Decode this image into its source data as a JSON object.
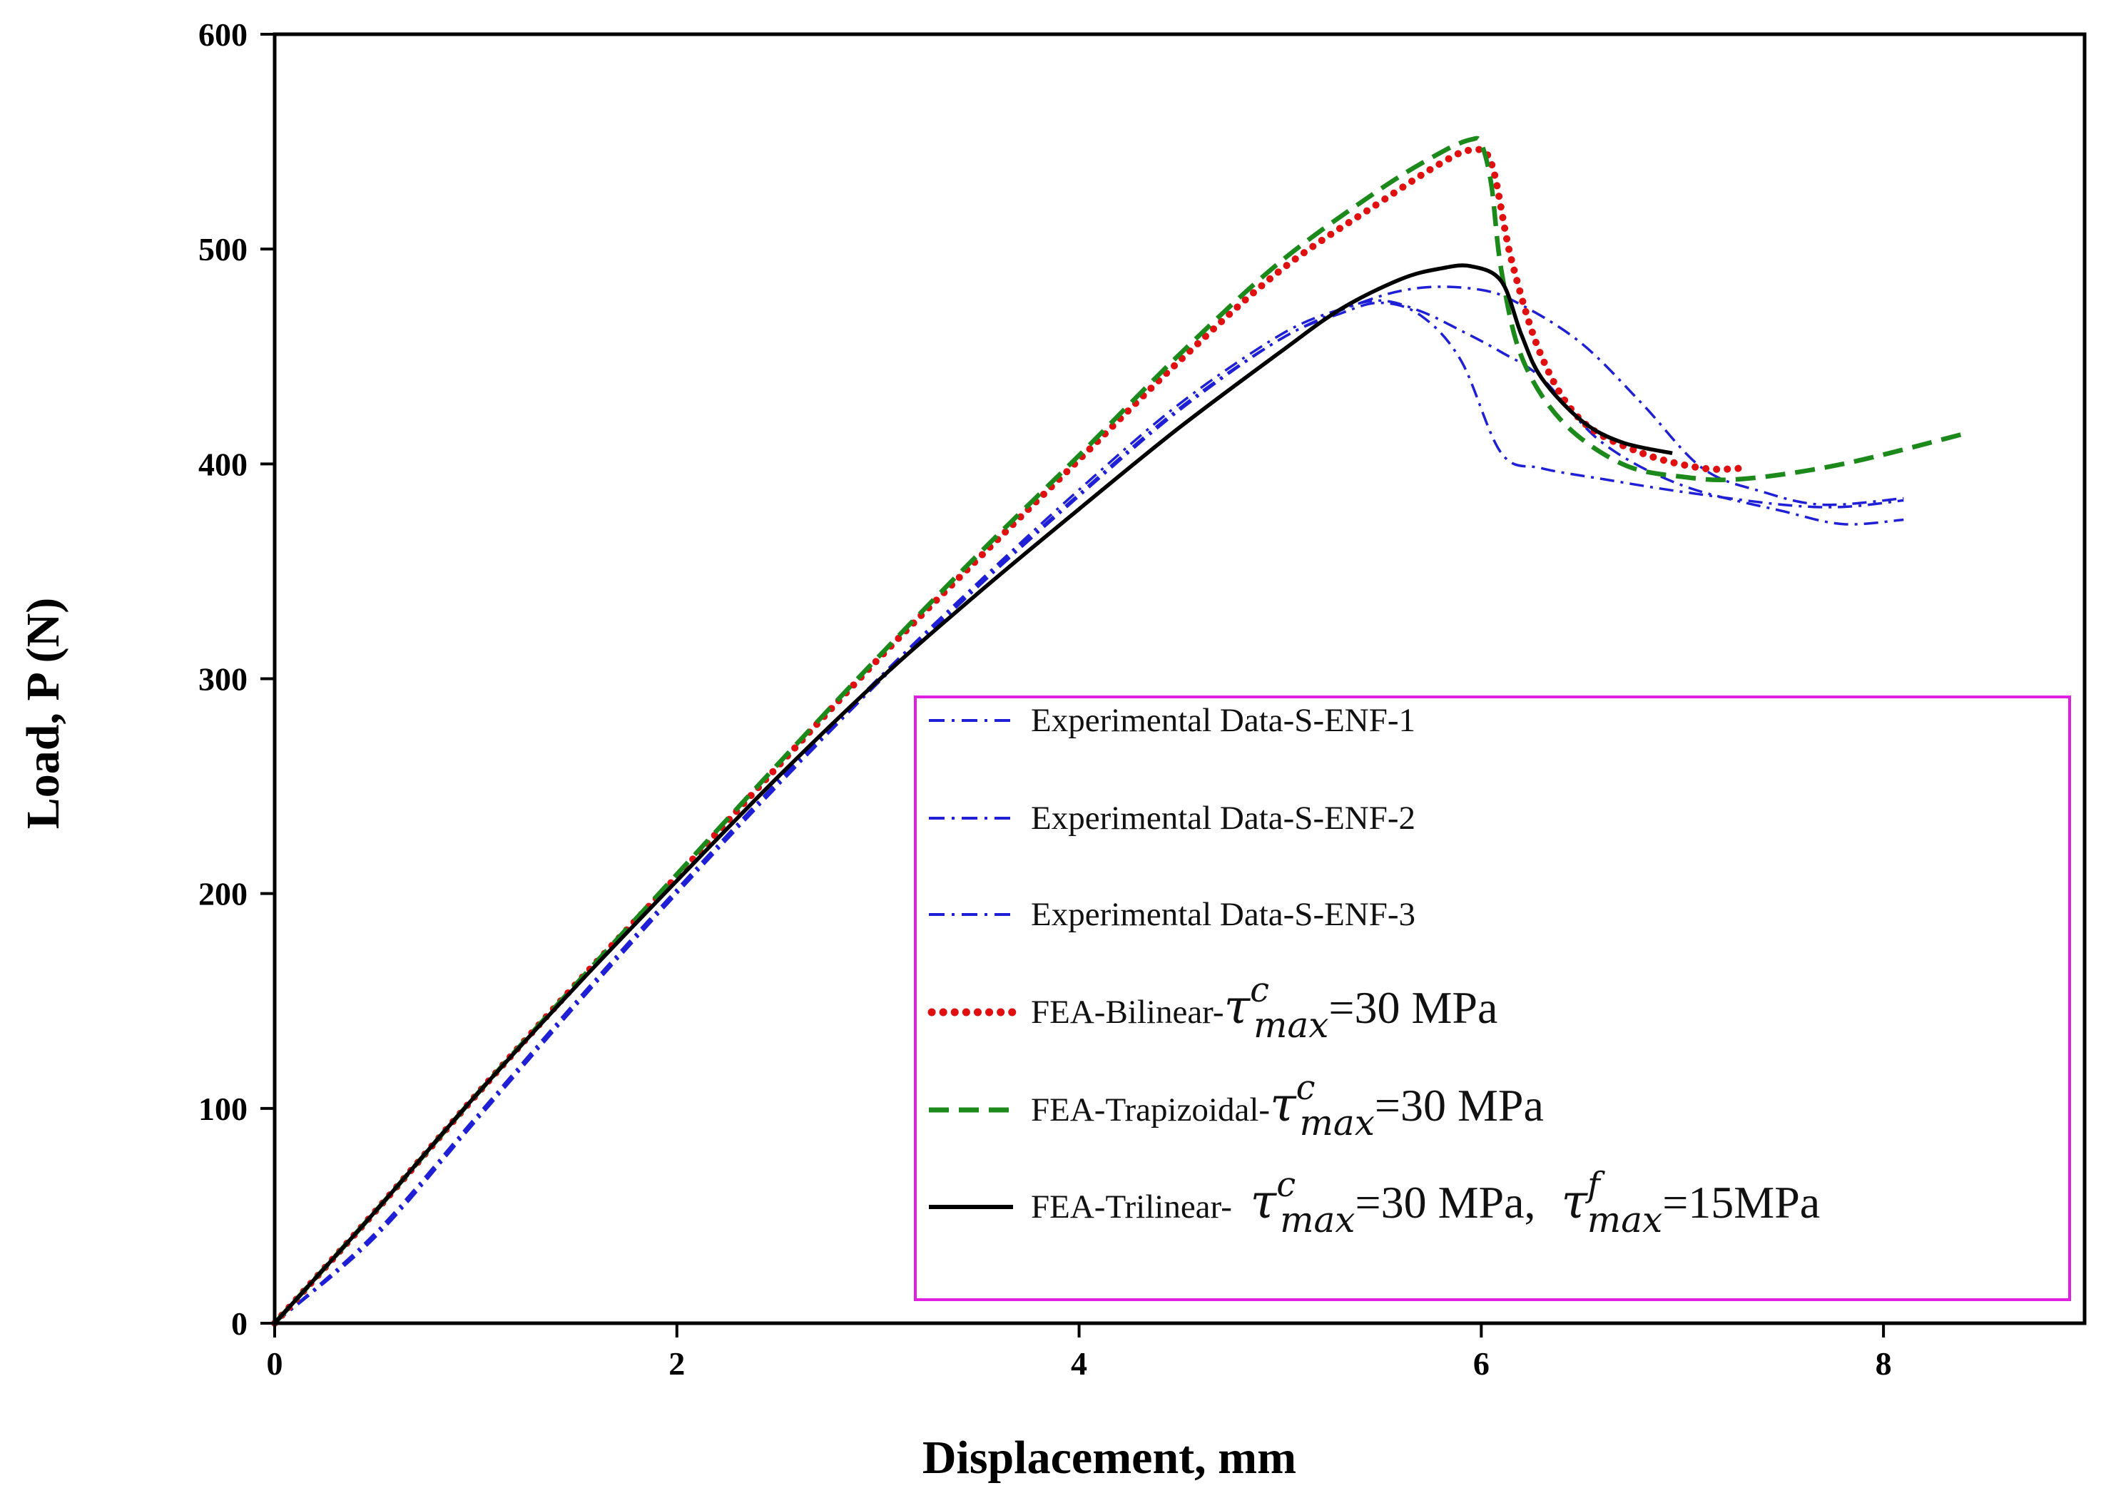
{
  "chart_data": {
    "type": "line",
    "title": "",
    "xlabel": "Displacement, mm",
    "ylabel": "Load, P (N)",
    "xlim": [
      0,
      9
    ],
    "ylim": [
      0,
      600
    ],
    "xticks": [
      "0",
      "2",
      "4",
      "6",
      "8"
    ],
    "yticks": [
      "0",
      "100",
      "200",
      "300",
      "400",
      "500",
      "600"
    ],
    "grid": false,
    "legend_position": "lower-right",
    "series": [
      {
        "name": "Experimental Data-S-ENF-1",
        "color": "#1f1fd6",
        "style": "dashdot",
        "x": [
          0,
          0.5,
          1.0,
          1.5,
          2.0,
          2.5,
          3.0,
          3.5,
          4.0,
          4.5,
          5.0,
          5.3,
          5.5,
          5.7,
          5.9,
          6.1,
          6.3,
          6.6,
          7.0,
          7.5,
          7.8,
          8.1
        ],
        "y": [
          0,
          40,
          94,
          148,
          200,
          250,
          298,
          343,
          385,
          425,
          458,
          470,
          475,
          469,
          448,
          405,
          398,
          393,
          387,
          381,
          380,
          383
        ]
      },
      {
        "name": "Experimental Data-S-ENF-2",
        "color": "#1f1fd6",
        "style": "dashdot",
        "x": [
          0,
          0.5,
          1.0,
          1.5,
          2.0,
          2.5,
          3.0,
          3.5,
          4.0,
          4.5,
          5.0,
          5.3,
          5.5,
          5.7,
          5.9,
          6.1,
          6.3,
          6.6,
          7.0,
          7.5,
          7.8,
          8.1
        ],
        "y": [
          0,
          42,
          96,
          150,
          202,
          252,
          300,
          345,
          388,
          428,
          460,
          472,
          476,
          471,
          462,
          452,
          440,
          410,
          390,
          378,
          372,
          374
        ]
      },
      {
        "name": "Experimental Data-S-ENF-3",
        "color": "#1f1fd6",
        "style": "dashdot",
        "x": [
          0,
          0.5,
          1.0,
          1.5,
          2.0,
          2.5,
          3.0,
          3.5,
          4.0,
          4.5,
          5.0,
          5.4,
          5.7,
          6.0,
          6.2,
          6.5,
          6.8,
          7.1,
          7.4,
          7.7,
          8.1
        ],
        "y": [
          0,
          41,
          95,
          149,
          201,
          251,
          299,
          344,
          386,
          426,
          458,
          475,
          482,
          481,
          474,
          456,
          428,
          398,
          387,
          381,
          384
        ]
      },
      {
        "name": "FEA-Bilinear-τ^c_max=30 MPa",
        "color": "#e01010",
        "style": "dotted",
        "x": [
          0,
          0.5,
          1.0,
          1.5,
          2.0,
          2.5,
          3.0,
          3.5,
          4.0,
          4.5,
          5.0,
          5.5,
          5.8,
          5.95,
          6.05,
          6.15,
          6.3,
          6.5,
          6.8,
          7.1,
          7.3
        ],
        "y": [
          0,
          52,
          106,
          158,
          208,
          259,
          309,
          356,
          402,
          448,
          490,
          522,
          540,
          546,
          540,
          495,
          450,
          420,
          405,
          398,
          398
        ]
      },
      {
        "name": "FEA-Trapizoidal-τ^c_max=30 MPa",
        "color": "#1b8a1b",
        "style": "dashed",
        "x": [
          0,
          0.5,
          1.0,
          1.5,
          2.0,
          2.5,
          3.0,
          3.5,
          4.0,
          4.5,
          5.0,
          5.5,
          5.8,
          5.95,
          6.0,
          6.05,
          6.1,
          6.2,
          6.4,
          6.7,
          7.0,
          7.3,
          7.8,
          8.4
        ],
        "y": [
          0,
          52,
          106,
          158,
          209,
          260,
          310,
          358,
          404,
          451,
          494,
          528,
          545,
          551,
          549,
          530,
          490,
          450,
          420,
          400,
          394,
          393,
          400,
          414
        ]
      },
      {
        "name": "FEA-Trilinear- τ^c_max=30 MPa, τ^f_max=15MPa",
        "color": "#000000",
        "style": "solid",
        "x": [
          0,
          0.5,
          1.0,
          1.5,
          2.0,
          2.5,
          3.0,
          3.5,
          4.0,
          4.5,
          5.0,
          5.3,
          5.6,
          5.8,
          5.95,
          6.1,
          6.2,
          6.3,
          6.5,
          6.7,
          6.95
        ],
        "y": [
          0,
          52,
          106,
          157,
          206,
          254,
          299,
          340,
          379,
          417,
          452,
          472,
          486,
          491,
          492,
          485,
          460,
          440,
          420,
          410,
          405
        ]
      }
    ]
  },
  "legend": {
    "entries": [
      {
        "text": "Experimental Data-S-ENF-1"
      },
      {
        "text": "Experimental Data-S-ENF-2"
      },
      {
        "text": "Experimental Data-S-ENF-3"
      },
      {
        "prefix": "FEA-Bilinear-",
        "tau": "τ",
        "sup": "c",
        "sub": "max",
        "suffix": "=30 MPa"
      },
      {
        "prefix": "FEA-Trapizoidal-",
        "tau": "τ",
        "sup": "c",
        "sub": "max",
        "suffix": "=30 MPa"
      },
      {
        "prefix": "FEA-Trilinear- ",
        "tau": "τ",
        "sup": "c",
        "sub": "max",
        "suffix": "=30 MPa,",
        "tau2": "τ",
        "sup2": "f",
        "sub2": "max",
        "suffix2": "=15MPa"
      }
    ],
    "border_color": "#e020e0"
  }
}
